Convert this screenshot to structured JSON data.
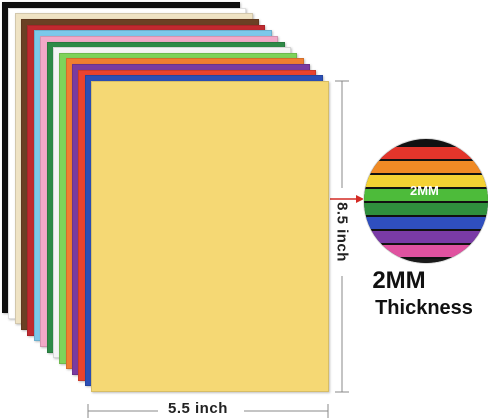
{
  "product": {
    "width_label": "5.5 inch",
    "height_label": "8.5 inch",
    "thickness_value": "2MM",
    "thickness_label": "Thickness",
    "zoom_label": "2MM"
  },
  "sheet_colors": [
    "#111111",
    "#ffffff",
    "#efe3c4",
    "#6b4024",
    "#c0292f",
    "#7cc8ea",
    "#f2a9c8",
    "#2e8a47",
    "#f4f4f4",
    "#7ed35a",
    "#f07e31",
    "#7a3ba0",
    "#e9432f",
    "#2b4fb6",
    "#f5d874"
  ],
  "band_colors": [
    "#e3352b",
    "#f08a25",
    "#f4d133",
    "#4dbb3a",
    "#2f8f3d",
    "#2f4fbf",
    "#7a3ba6",
    "#e052a0",
    "#1a1a1a"
  ],
  "accent": {
    "arrow": "#d42a23",
    "dimension": "#888888"
  }
}
